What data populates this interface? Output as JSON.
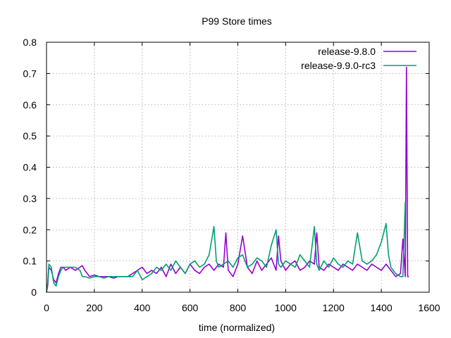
{
  "chart_data": {
    "type": "line",
    "title": "P99 Store times",
    "xlabel": "time (normalized)",
    "ylabel": "",
    "xlim": [
      0,
      1600
    ],
    "ylim": [
      0,
      0.8
    ],
    "x_ticks": [
      "0",
      "200",
      "400",
      "600",
      "800",
      "1000",
      "1200",
      "1400",
      "1600"
    ],
    "y_ticks": [
      "0",
      "0.1",
      "0.2",
      "0.3",
      "0.4",
      "0.5",
      "0.6",
      "0.7",
      "0.8"
    ],
    "grid": true,
    "legend_position": "top-right",
    "series": [
      {
        "name": "release-9.8.0",
        "color": "#9400d3",
        "x": [
          0,
          5,
          10,
          20,
          30,
          40,
          50,
          60,
          70,
          80,
          100,
          120,
          140,
          150,
          160,
          180,
          200,
          220,
          240,
          260,
          280,
          300,
          320,
          340,
          360,
          380,
          400,
          420,
          440,
          460,
          480,
          500,
          520,
          540,
          560,
          580,
          600,
          620,
          640,
          660,
          680,
          700,
          720,
          740,
          750,
          760,
          780,
          800,
          820,
          840,
          860,
          880,
          900,
          920,
          940,
          960,
          970,
          980,
          1000,
          1020,
          1040,
          1060,
          1080,
          1100,
          1120,
          1130,
          1140,
          1160,
          1180,
          1200,
          1220,
          1240,
          1260,
          1280,
          1300,
          1320,
          1340,
          1360,
          1380,
          1400,
          1420,
          1440,
          1460,
          1480,
          1490,
          1500,
          1505,
          1510,
          1515
        ],
        "y": [
          0.0,
          0.02,
          0.08,
          0.07,
          0.04,
          0.03,
          0.06,
          0.08,
          0.08,
          0.07,
          0.08,
          0.07,
          0.08,
          0.085,
          0.07,
          0.05,
          0.055,
          0.05,
          0.05,
          0.05,
          0.045,
          0.05,
          0.05,
          0.05,
          0.06,
          0.07,
          0.08,
          0.06,
          0.07,
          0.06,
          0.08,
          0.05,
          0.09,
          0.06,
          0.08,
          0.06,
          0.09,
          0.07,
          0.06,
          0.08,
          0.09,
          0.07,
          0.09,
          0.08,
          0.19,
          0.07,
          0.05,
          0.09,
          0.18,
          0.08,
          0.06,
          0.1,
          0.07,
          0.09,
          0.11,
          0.07,
          0.18,
          0.1,
          0.07,
          0.09,
          0.1,
          0.07,
          0.08,
          0.1,
          0.09,
          0.19,
          0.08,
          0.07,
          0.09,
          0.08,
          0.07,
          0.09,
          0.08,
          0.07,
          0.09,
          0.08,
          0.07,
          0.09,
          0.08,
          0.07,
          0.09,
          0.07,
          0.05,
          0.06,
          0.17,
          0.05,
          0.72,
          0.05,
          0.05
        ]
      },
      {
        "name": "release-9.9.0-rc3",
        "color": "#009e73",
        "x": [
          0,
          5,
          10,
          20,
          30,
          40,
          50,
          60,
          70,
          80,
          100,
          120,
          140,
          150,
          160,
          180,
          200,
          220,
          240,
          260,
          280,
          300,
          320,
          340,
          360,
          380,
          400,
          420,
          440,
          460,
          480,
          500,
          520,
          540,
          560,
          580,
          600,
          620,
          640,
          660,
          680,
          700,
          710,
          720,
          740,
          760,
          780,
          800,
          820,
          840,
          860,
          880,
          900,
          920,
          940,
          960,
          970,
          980,
          1000,
          1020,
          1040,
          1060,
          1080,
          1100,
          1120,
          1130,
          1140,
          1160,
          1180,
          1200,
          1220,
          1240,
          1260,
          1280,
          1300,
          1320,
          1340,
          1360,
          1380,
          1400,
          1420,
          1430,
          1440,
          1460,
          1480,
          1490,
          1500
        ],
        "y": [
          0.0,
          0.03,
          0.09,
          0.08,
          0.03,
          0.02,
          0.05,
          0.07,
          0.08,
          0.08,
          0.08,
          0.08,
          0.07,
          0.05,
          0.05,
          0.045,
          0.05,
          0.05,
          0.045,
          0.05,
          0.05,
          0.05,
          0.05,
          0.05,
          0.05,
          0.07,
          0.04,
          0.05,
          0.06,
          0.08,
          0.07,
          0.09,
          0.07,
          0.1,
          0.08,
          0.06,
          0.09,
          0.1,
          0.08,
          0.09,
          0.12,
          0.21,
          0.1,
          0.08,
          0.09,
          0.1,
          0.08,
          0.11,
          0.12,
          0.08,
          0.09,
          0.11,
          0.1,
          0.08,
          0.15,
          0.2,
          0.09,
          0.08,
          0.1,
          0.09,
          0.08,
          0.12,
          0.1,
          0.08,
          0.21,
          0.09,
          0.07,
          0.1,
          0.08,
          0.11,
          0.09,
          0.08,
          0.1,
          0.09,
          0.19,
          0.1,
          0.09,
          0.1,
          0.12,
          0.16,
          0.22,
          0.12,
          0.08,
          0.06,
          0.05,
          0.05,
          0.29
        ]
      }
    ]
  }
}
